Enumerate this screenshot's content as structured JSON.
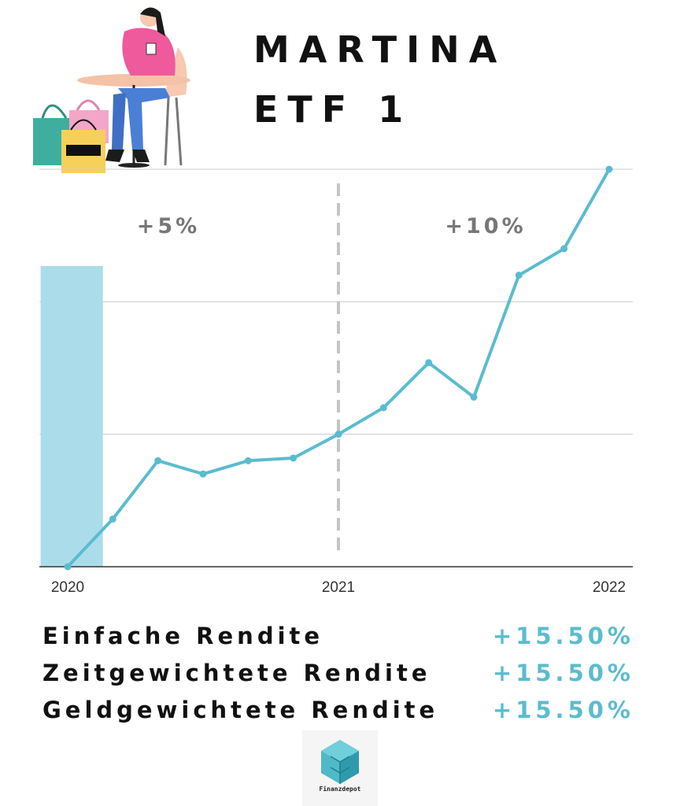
{
  "header": {
    "title_line1": "MARTINA",
    "title_line2": "ETF 1",
    "illustration_icon": "woman-with-coffee-and-shopping-bags-icon"
  },
  "chart_data": {
    "type": "line",
    "title": "",
    "xlabel": "",
    "ylabel": "",
    "x_ticks": [
      "2020",
      "2021",
      "2022"
    ],
    "x": [
      2020.0,
      2020.1667,
      2020.3333,
      2020.5,
      2020.6667,
      2020.8333,
      2021.0,
      2021.1667,
      2021.3333,
      2021.5,
      2021.6667,
      2021.8333,
      2022.0
    ],
    "series": [
      {
        "values": [
          0.0,
          1.8,
          4.0,
          3.5,
          4.0,
          4.1,
          5.0,
          6.0,
          7.7,
          6.4,
          11.0,
          12.0,
          15.0
        ]
      }
    ],
    "xlim": [
      2020.0,
      2022.0
    ],
    "ylim": [
      0,
      15
    ],
    "grid": true,
    "line_color": "#5bbccf",
    "highlight_band": {
      "x_start": 2019.9,
      "x_end": 2020.13,
      "color": "#aadde9"
    },
    "divider_x": 2021.0,
    "annotations": [
      "+5%",
      "+10%"
    ]
  },
  "stats": [
    {
      "label": "Einfache Rendite",
      "value": "+15.50%"
    },
    {
      "label": "Zeitgewichtete Rendite",
      "value": "+15.50%"
    },
    {
      "label": "Geldgewichtete Rendite",
      "value": "+15.50%"
    }
  ],
  "logo": {
    "text": "Finanzdepot",
    "icon": "isometric-cube-logo-icon",
    "color": "#4fb9c8"
  }
}
